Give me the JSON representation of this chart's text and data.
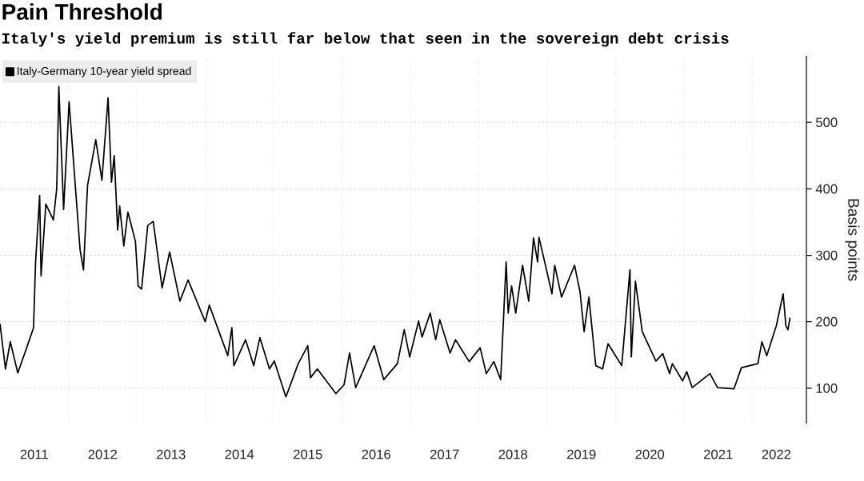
{
  "chart_data": {
    "type": "line",
    "title": "Pain Threshold",
    "subtitle": "Italy's yield premium is still far below that seen in the sovereign debt crisis",
    "ylabel": "Basis points",
    "x": [
      2011.0,
      2011.08,
      2011.15,
      2011.26,
      2011.38,
      2011.49,
      2011.52,
      2011.58,
      2011.6,
      2011.67,
      2011.78,
      2011.83,
      2011.86,
      2011.93,
      2012.01,
      2012.17,
      2012.22,
      2012.28,
      2012.4,
      2012.49,
      2012.58,
      2012.63,
      2012.67,
      2012.72,
      2012.75,
      2012.81,
      2012.87,
      2012.98,
      2013.02,
      2013.07,
      2013.16,
      2013.24,
      2013.37,
      2013.48,
      2013.63,
      2013.75,
      2014.0,
      2014.06,
      2014.33,
      2014.39,
      2014.42,
      2014.59,
      2014.71,
      2014.8,
      2014.94,
      2015.01,
      2015.18,
      2015.36,
      2015.5,
      2015.54,
      2015.64,
      2015.91,
      2016.03,
      2016.11,
      2016.2,
      2016.47,
      2016.61,
      2016.81,
      2016.91,
      2016.99,
      2017.12,
      2017.17,
      2017.29,
      2017.37,
      2017.43,
      2017.58,
      2017.66,
      2017.86,
      2018.02,
      2018.11,
      2018.22,
      2018.32,
      2018.4,
      2018.43,
      2018.48,
      2018.54,
      2018.64,
      2018.73,
      2018.8,
      2018.86,
      2018.88,
      2018.95,
      2019.07,
      2019.11,
      2019.21,
      2019.4,
      2019.48,
      2019.54,
      2019.61,
      2019.71,
      2019.81,
      2019.89,
      2020.09,
      2020.21,
      2020.23,
      2020.29,
      2020.39,
      2020.59,
      2020.69,
      2020.79,
      2020.83,
      2020.98,
      2021.04,
      2021.12,
      2021.38,
      2021.49,
      2021.73,
      2021.84,
      2022.08,
      2022.14,
      2022.21,
      2022.35,
      2022.45,
      2022.49,
      2022.52,
      2022.55
    ],
    "series": [
      {
        "name": "Italy-Germany 10-year yield spread",
        "color": "#000000",
        "values": [
          197,
          129,
          170,
          123,
          158,
          191,
          290,
          390,
          269,
          377,
          353,
          401,
          554,
          369,
          531,
          309,
          278,
          405,
          474,
          413,
          537,
          410,
          450,
          338,
          374,
          314,
          365,
          321,
          254,
          249,
          345,
          351,
          251,
          305,
          231,
          263,
          200,
          225,
          149,
          191,
          134,
          173,
          134,
          176,
          129,
          141,
          87,
          137,
          164,
          116,
          129,
          92,
          105,
          153,
          101,
          164,
          113,
          137,
          188,
          147,
          201,
          177,
          213,
          173,
          203,
          153,
          173,
          140,
          161,
          122,
          140,
          113,
          290,
          213,
          254,
          213,
          285,
          231,
          326,
          290,
          327,
          296,
          242,
          285,
          237,
          285,
          245,
          185,
          237,
          134,
          129,
          167,
          134,
          278,
          147,
          261,
          185,
          141,
          152,
          122,
          137,
          111,
          125,
          101,
          122,
          101,
          99,
          131,
          137,
          170,
          149,
          194,
          242,
          194,
          188,
          206
        ]
      }
    ],
    "xlim": [
      2011.0,
      2022.79
    ],
    "xticks": [
      {
        "value": 2011.5,
        "label": "2011"
      },
      {
        "value": 2012,
        "label": null
      },
      {
        "value": 2012.5,
        "label": "2012"
      },
      {
        "value": 2013,
        "label": null
      },
      {
        "value": 2013.5,
        "label": "2013"
      },
      {
        "value": 2014,
        "label": null
      },
      {
        "value": 2014.5,
        "label": "2014"
      },
      {
        "value": 2015,
        "label": null
      },
      {
        "value": 2015.5,
        "label": "2015"
      },
      {
        "value": 2016,
        "label": null
      },
      {
        "value": 2016.5,
        "label": "2016"
      },
      {
        "value": 2017,
        "label": null
      },
      {
        "value": 2017.5,
        "label": "2017"
      },
      {
        "value": 2018,
        "label": null
      },
      {
        "value": 2018.5,
        "label": "2018"
      },
      {
        "value": 2019,
        "label": null
      },
      {
        "value": 2019.5,
        "label": "2019"
      },
      {
        "value": 2020,
        "label": null
      },
      {
        "value": 2020.5,
        "label": "2020"
      },
      {
        "value": 2021,
        "label": null
      },
      {
        "value": 2021.5,
        "label": "2021"
      },
      {
        "value": 2022,
        "label": null
      },
      {
        "value": 2022.35,
        "label": "2022"
      }
    ],
    "ylim": [
      47,
      600
    ],
    "yticks": [
      100,
      200,
      300,
      400,
      500
    ],
    "grid": true,
    "legend": "top left",
    "marker": "none",
    "line_style": "solid"
  }
}
